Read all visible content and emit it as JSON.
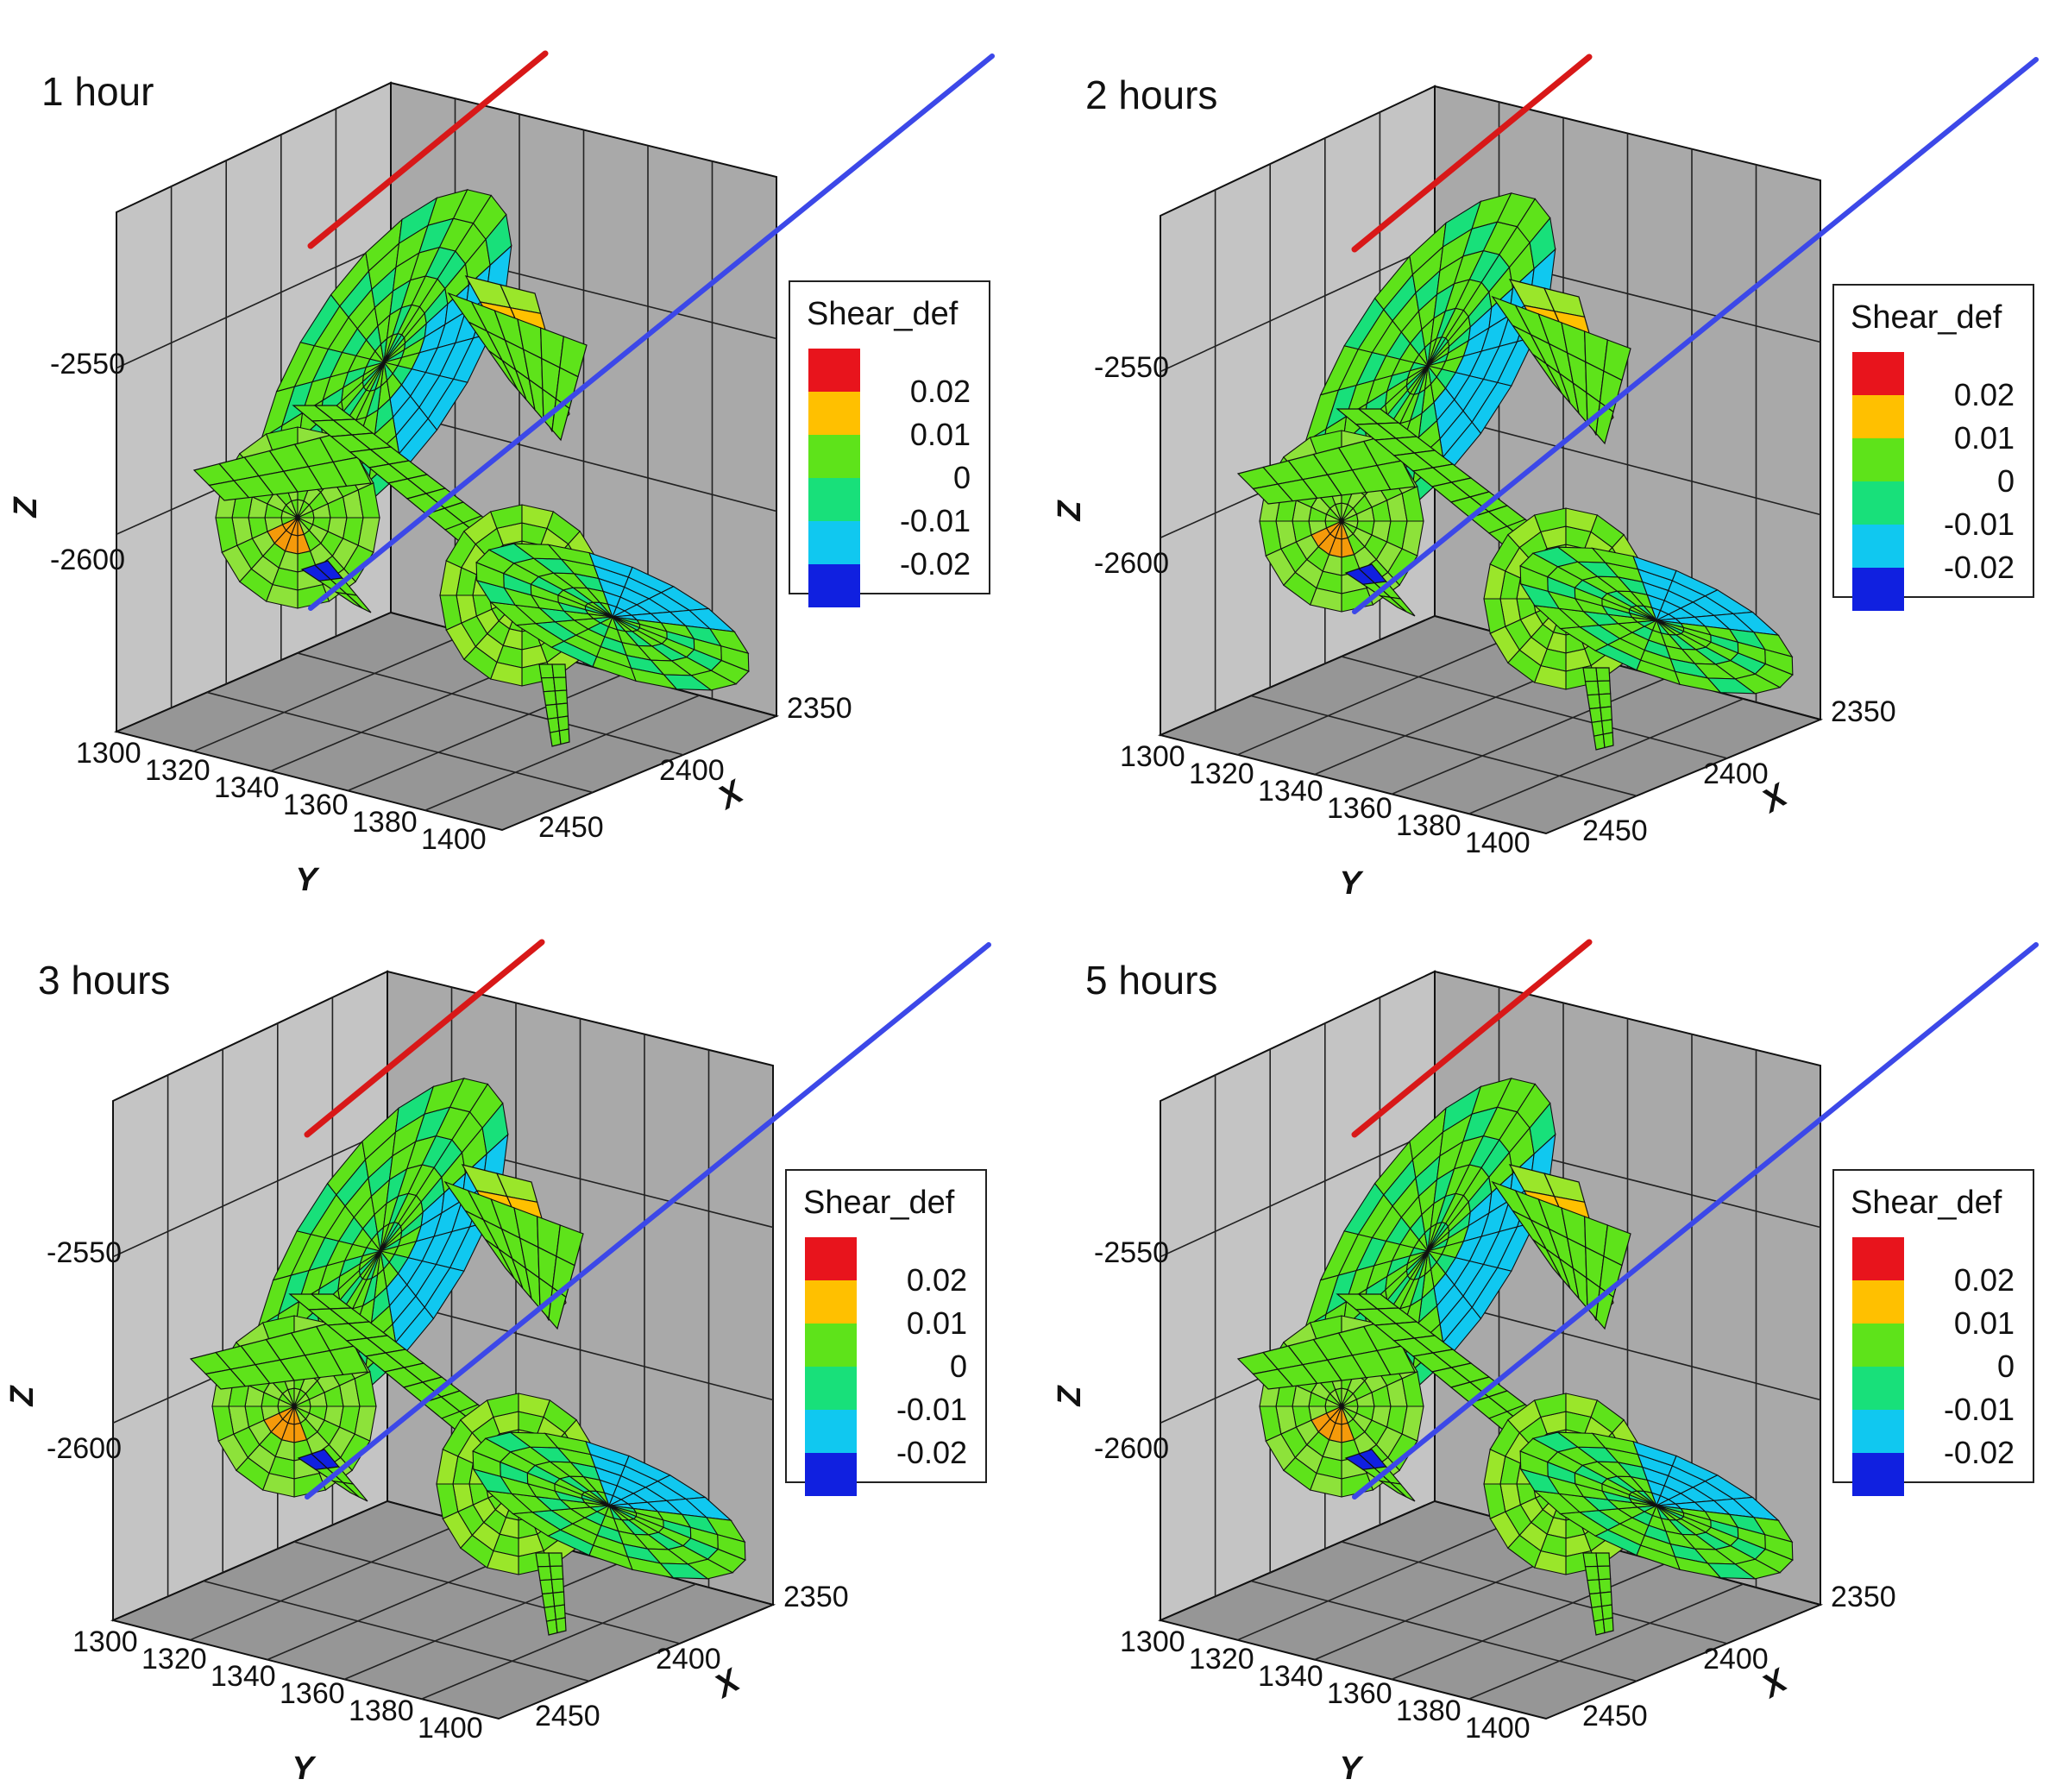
{
  "chart_data": [
    {
      "type": "3d-surface",
      "title": "1 hour",
      "zlabel": "Z",
      "xlabel": "X",
      "ylabel": "Y",
      "z_ticks": [
        "-2550",
        "-2600"
      ],
      "x_ticks": [
        "2350",
        "2400",
        "2450"
      ],
      "y_ticks": [
        "1300",
        "1320",
        "1340",
        "1360",
        "1380",
        "1400"
      ],
      "legend": {
        "title": "Shear_def",
        "labels": [
          "0.02",
          "0.01",
          "0",
          "-0.01",
          "-0.02"
        ],
        "colors": [
          "#e8141c",
          "#ffc000",
          "#5ee31a",
          "#18e07a",
          "#10c8f0",
          "#1020e0"
        ]
      },
      "lines": [
        {
          "color": "#d81818"
        },
        {
          "color": "#3c48e8"
        }
      ],
      "dominant_value": 0.005
    },
    {
      "type": "3d-surface",
      "title": "2 hours",
      "zlabel": "Z",
      "xlabel": "X",
      "ylabel": "Y",
      "z_ticks": [
        "-2550",
        "-2600"
      ],
      "x_ticks": [
        "2350",
        "2400",
        "2450"
      ],
      "y_ticks": [
        "1300",
        "1320",
        "1340",
        "1360",
        "1380",
        "1400"
      ],
      "legend": {
        "title": "Shear_def",
        "labels": [
          "0.02",
          "0.01",
          "0",
          "-0.01",
          "-0.02"
        ],
        "colors": [
          "#e8141c",
          "#ffc000",
          "#5ee31a",
          "#18e07a",
          "#10c8f0",
          "#1020e0"
        ]
      },
      "lines": [
        {
          "color": "#d81818"
        },
        {
          "color": "#3c48e8"
        }
      ],
      "dominant_value": 0.005
    },
    {
      "type": "3d-surface",
      "title": "3 hours",
      "zlabel": "Z",
      "xlabel": "X",
      "ylabel": "Y",
      "z_ticks": [
        "-2550",
        "-2600"
      ],
      "x_ticks": [
        "2350",
        "2400",
        "2450"
      ],
      "y_ticks": [
        "1300",
        "1320",
        "1340",
        "1360",
        "1380",
        "1400"
      ],
      "legend": {
        "title": "Shear_def",
        "labels": [
          "0.02",
          "0.01",
          "0",
          "-0.01",
          "-0.02"
        ],
        "colors": [
          "#e8141c",
          "#ffc000",
          "#5ee31a",
          "#18e07a",
          "#10c8f0",
          "#1020e0"
        ]
      },
      "lines": [
        {
          "color": "#d81818"
        },
        {
          "color": "#3c48e8"
        }
      ],
      "dominant_value": 0.005
    },
    {
      "type": "3d-surface",
      "title": "5 hours",
      "zlabel": "Z",
      "xlabel": "X",
      "ylabel": "Y",
      "z_ticks": [
        "-2550",
        "-2600"
      ],
      "x_ticks": [
        "2350",
        "2400",
        "2450"
      ],
      "y_ticks": [
        "1300",
        "1320",
        "1340",
        "1360",
        "1380",
        "1400"
      ],
      "legend": {
        "title": "Shear_def",
        "labels": [
          "0.02",
          "0.01",
          "0",
          "-0.01",
          "-0.02"
        ],
        "colors": [
          "#e8141c",
          "#ffc000",
          "#5ee31a",
          "#18e07a",
          "#10c8f0",
          "#1020e0"
        ]
      },
      "lines": [
        {
          "color": "#d81818"
        },
        {
          "color": "#3c48e8"
        }
      ],
      "dominant_value": 0.005
    }
  ]
}
